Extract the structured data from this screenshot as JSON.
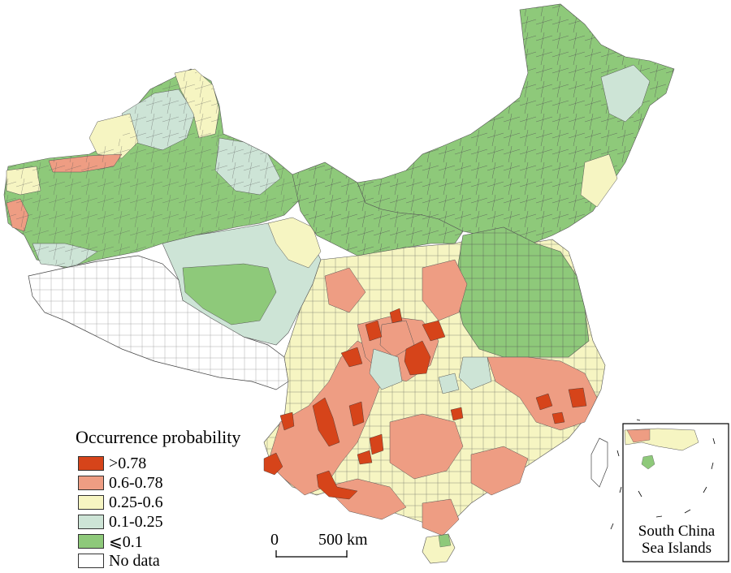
{
  "legend": {
    "title": "Occurrence probability",
    "items": [
      {
        "label": ">0.78",
        "color": "#d6441a"
      },
      {
        "label": "0.6-0.78",
        "color": "#ee9d83"
      },
      {
        "label": "0.25-0.6",
        "color": "#f6f5c2"
      },
      {
        "label": "0.1-0.25",
        "color": "#cde4d6"
      },
      {
        "label": "⩽0.1",
        "color": "#8ec97a"
      },
      {
        "label": "No data",
        "color": "#ffffff"
      }
    ]
  },
  "scale_bar": {
    "start_label": "0",
    "end_label": "500 km"
  },
  "inset": {
    "line1": "South China",
    "line2": "Sea Islands"
  }
}
